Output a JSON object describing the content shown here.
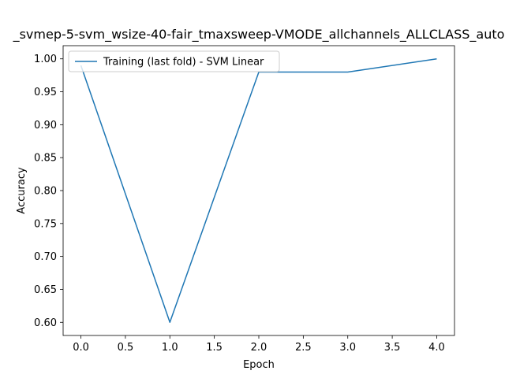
{
  "chart_data": {
    "type": "line",
    "title": "_svmep-5-svm_wsize-40-fair_tmaxsweep-VMODE_allchannels_ALLCLASS_auto",
    "xlabel": "Epoch",
    "ylabel": "Accuracy",
    "xlim": [
      -0.2,
      4.2
    ],
    "ylim": [
      0.58,
      1.02
    ],
    "xticks": [
      0.0,
      0.5,
      1.0,
      1.5,
      2.0,
      2.5,
      3.0,
      3.5,
      4.0
    ],
    "xtick_labels": [
      "0.0",
      "0.5",
      "1.0",
      "1.5",
      "2.0",
      "2.5",
      "3.0",
      "3.5",
      "4.0"
    ],
    "yticks": [
      0.6,
      0.65,
      0.7,
      0.75,
      0.8,
      0.85,
      0.9,
      0.95,
      1.0
    ],
    "ytick_labels": [
      "0.60",
      "0.65",
      "0.70",
      "0.75",
      "0.80",
      "0.85",
      "0.90",
      "0.95",
      "1.00"
    ],
    "grid": false,
    "legend_position": "top-left",
    "series": [
      {
        "name": "Training (last fold) - SVM Linear",
        "color": "#1f77b4",
        "x": [
          0,
          1,
          2,
          3,
          4
        ],
        "y": [
          0.99,
          0.6,
          0.98,
          0.98,
          1.0
        ]
      }
    ]
  }
}
